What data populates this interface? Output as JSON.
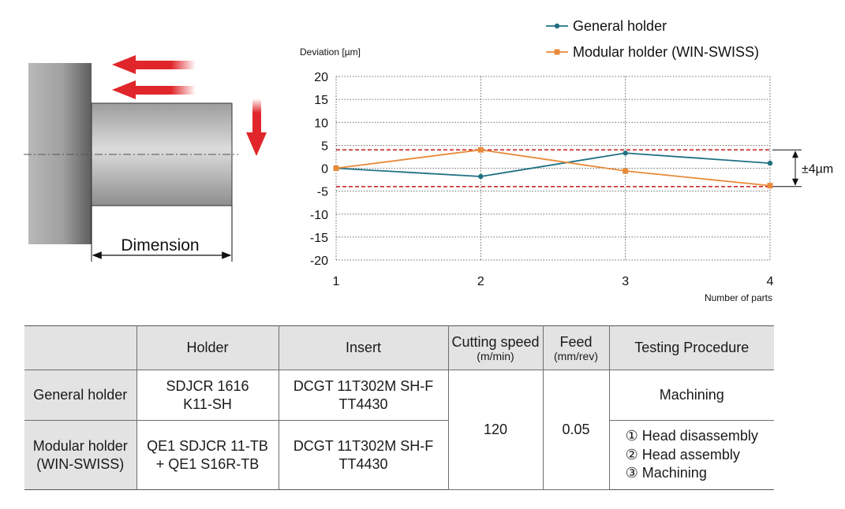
{
  "diagram": {
    "dimension_label": "Dimension"
  },
  "chart_data": {
    "type": "line",
    "ylabel": "Deviation [µm]",
    "xlabel": "Number of parts",
    "x": [
      1,
      2,
      3,
      4
    ],
    "ylim": [
      -20,
      20
    ],
    "yticks": [
      20,
      15,
      10,
      5,
      0,
      -5,
      -10,
      -15,
      -20
    ],
    "xlim": [
      1,
      4
    ],
    "grid": true,
    "legend_position": "top-right",
    "series": [
      {
        "name": "General holder",
        "values": [
          0,
          -1.8,
          3.3,
          1.1
        ],
        "color": "#1e7182",
        "marker": "circle"
      },
      {
        "name": "Modular holder (WIN-SWISS)",
        "values": [
          0,
          4.0,
          -0.6,
          -3.8
        ],
        "color": "#e88a3a",
        "marker": "square"
      }
    ],
    "tolerance_band": {
      "upper": 4,
      "lower": -4,
      "label": "±4µm",
      "color": "#cc2b2b"
    }
  },
  "table": {
    "headers": {
      "blank": "",
      "holder": "Holder",
      "insert": "Insert",
      "cutting_speed": "Cutting speed",
      "cutting_speed_unit": "(m/min)",
      "feed": "Feed",
      "feed_unit": "(mm/rev)",
      "procedure": "Testing Procedure"
    },
    "rows": [
      {
        "name": "General holder",
        "holder_line1": "SDJCR 1616",
        "holder_line2": "K11-SH",
        "insert_line1": "DCGT 11T302M SH-F",
        "insert_line2": "TT4430",
        "procedure": "Machining"
      },
      {
        "name_line1": "Modular holder",
        "name_line2": "(WIN-SWISS)",
        "holder_line1": "QE1 SDJCR 11-TB",
        "holder_line2": "+ QE1 S16R-TB",
        "insert_line1": "DCGT 11T302M SH-F",
        "insert_line2": "TT4430",
        "procedure_steps": [
          "① Head disassembly",
          "② Head assembly",
          "③ Machining"
        ]
      }
    ],
    "cutting_speed_value": "120",
    "feed_value": "0.05"
  }
}
